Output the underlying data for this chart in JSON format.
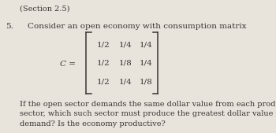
{
  "background_color": "#e8e4dc",
  "section_label": "(Section 2.5)",
  "problem_number": "5.",
  "line1": "Consider an open economy with consumption matrix",
  "matrix_label": "C =",
  "matrix_rows": [
    [
      "1/2",
      "1/4",
      "1/4"
    ],
    [
      "1/2",
      "1/8",
      "1/4"
    ],
    [
      "1/2",
      "1/4",
      "1/8"
    ]
  ],
  "bottom_text": "If the open sector demands the same dollar value from each product-producing\nsector, which such sector must produce the greatest dollar value to meet the\ndemand? Is the economy productive?",
  "font_size_main": 7.5,
  "font_size_section": 7.0,
  "text_color": "#3a3530"
}
